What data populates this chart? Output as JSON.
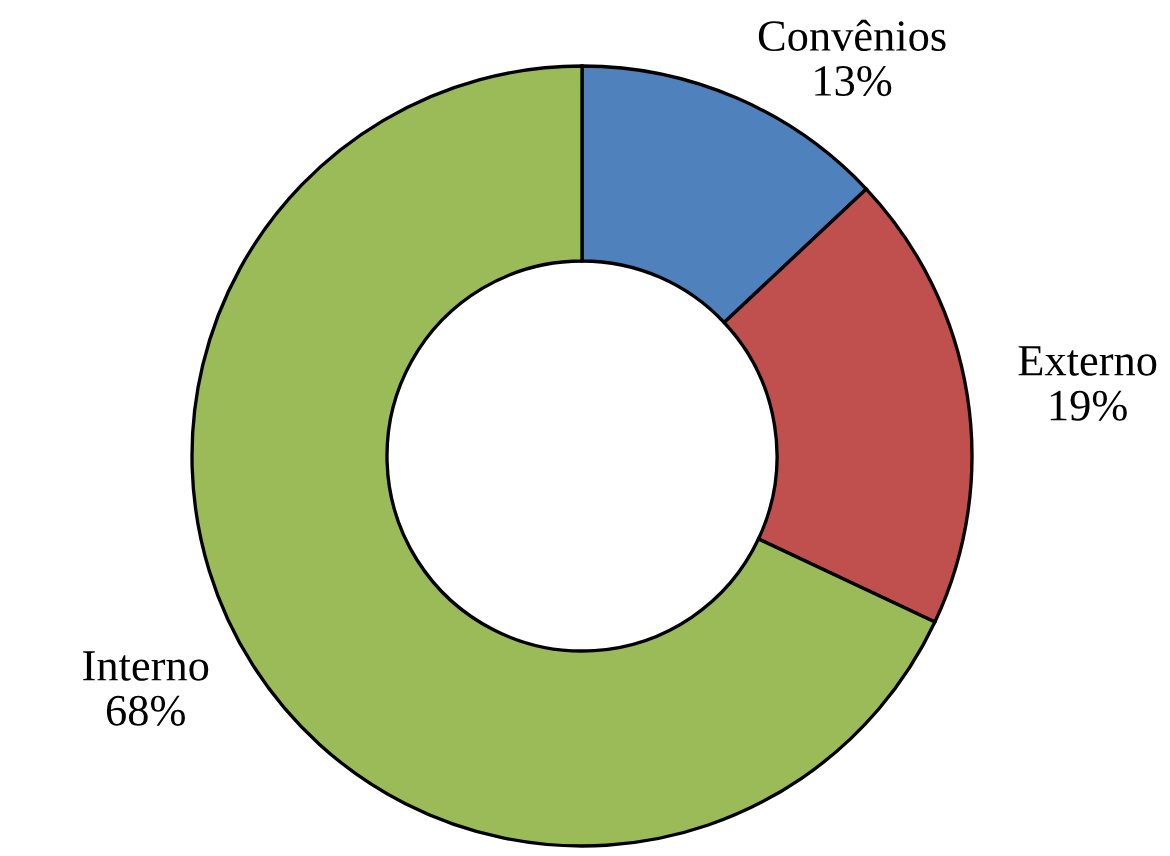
{
  "chart_data": {
    "type": "donut",
    "categories": [
      "Convênios",
      "Externo",
      "Interno"
    ],
    "values": [
      13,
      19,
      68
    ],
    "colors": [
      "#4f81bd",
      "#c0504d",
      "#9bbb59"
    ],
    "value_labels": [
      "13%",
      "19%",
      "68%"
    ]
  }
}
